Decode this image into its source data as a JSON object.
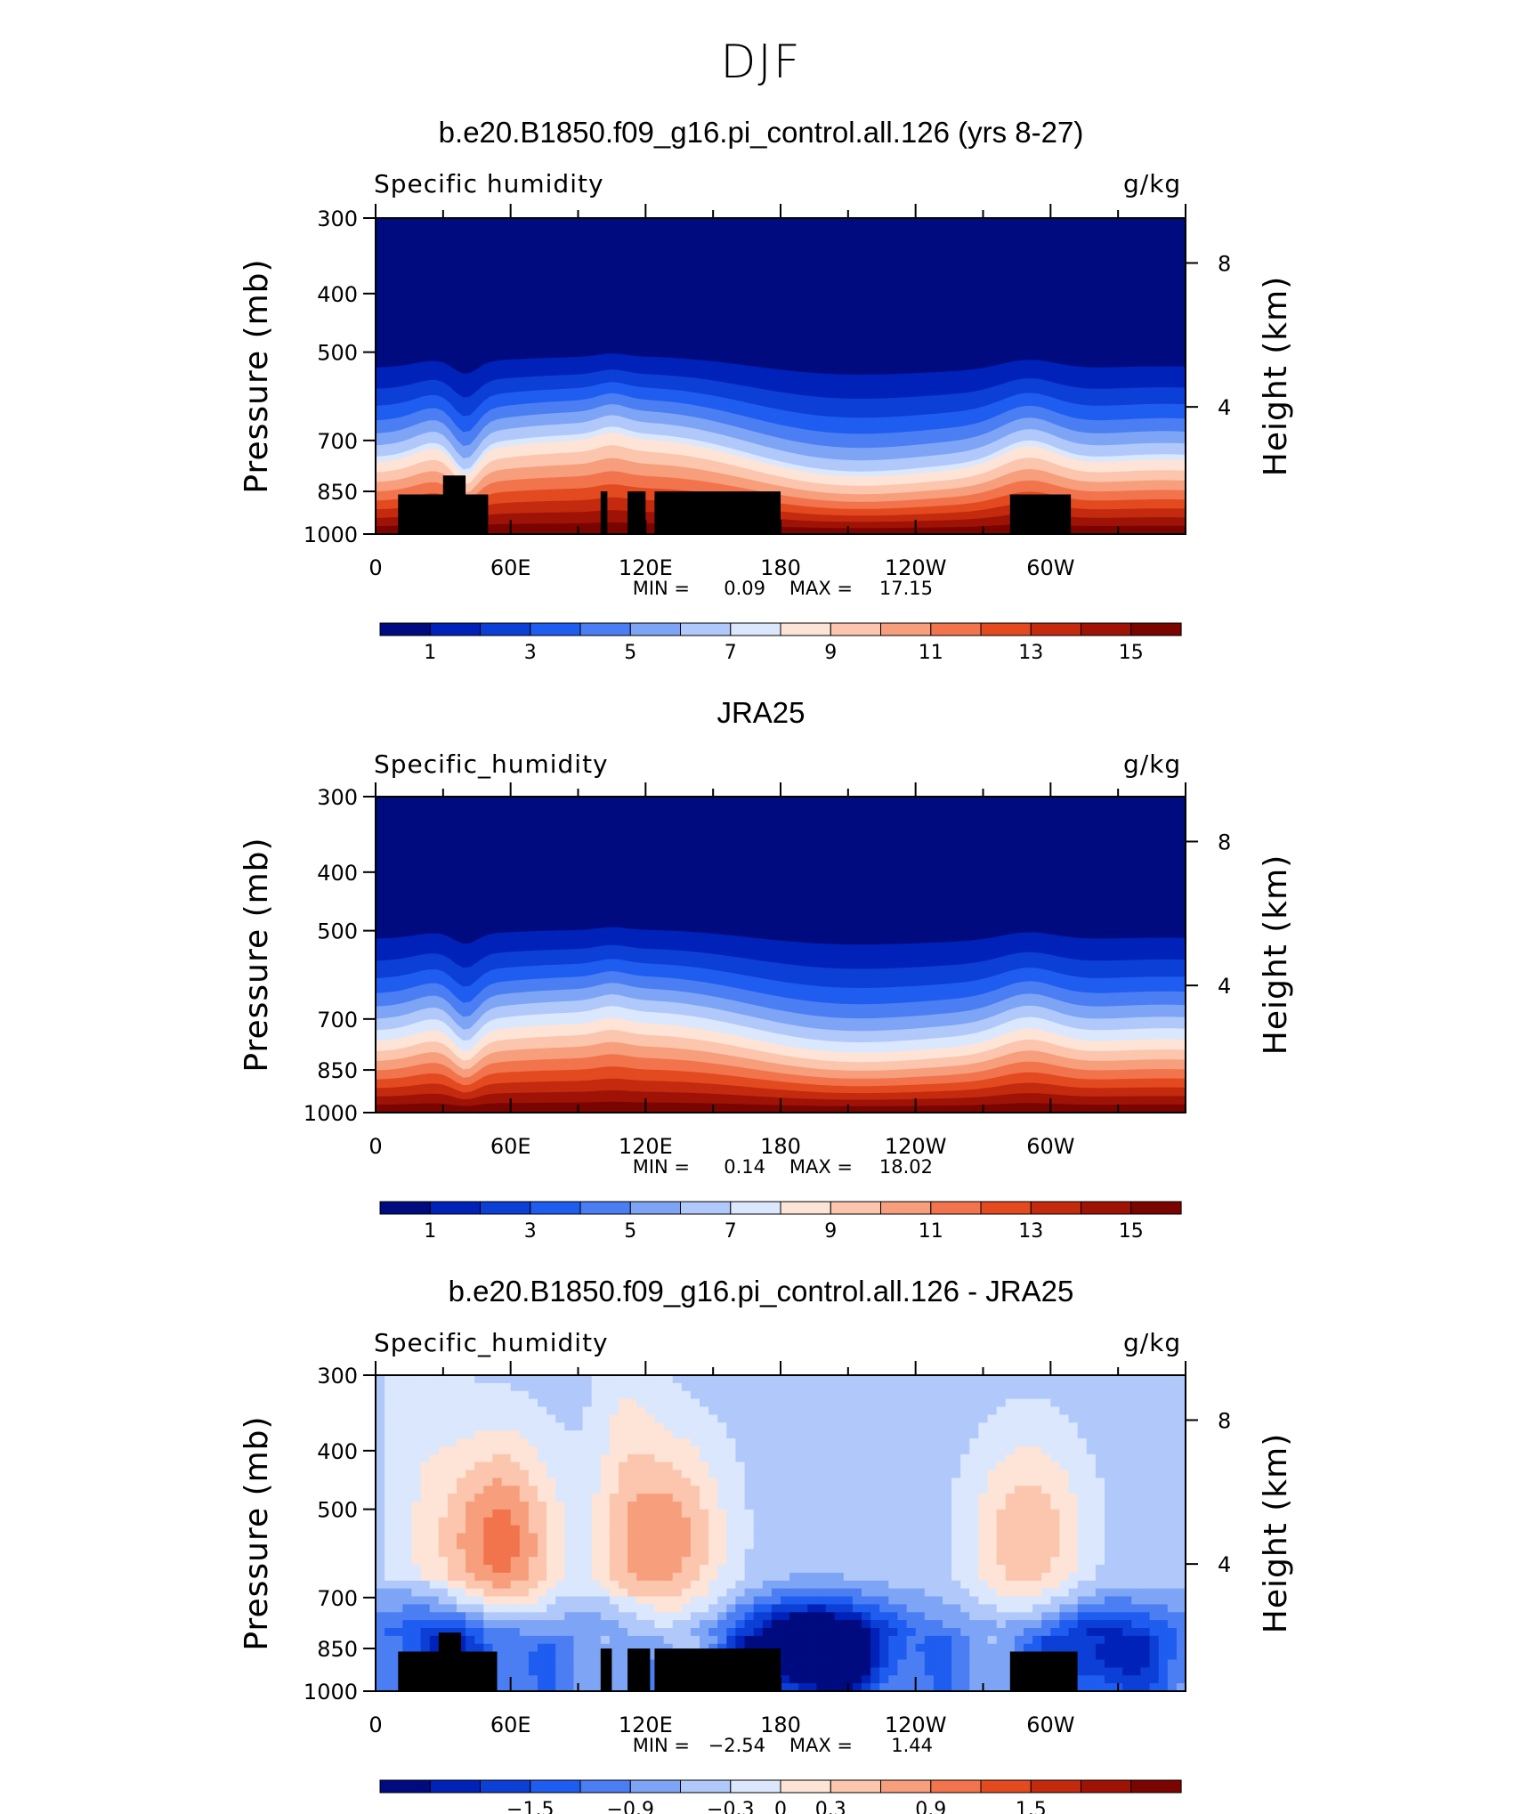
{
  "main_title": "DJF",
  "colors": {
    "absolute_scale": [
      "#000b80",
      "#0022b8",
      "#0b3fd6",
      "#1f5cf0",
      "#4a7ef2",
      "#7ea4f5",
      "#b1c9fa",
      "#dbe7fd",
      "#fde4d6",
      "#fbc6ad",
      "#f79e7c",
      "#f2744d",
      "#e34a20",
      "#c32a0e",
      "#9e1305",
      "#7a0400"
    ],
    "difference_scale": [
      "#000b80",
      "#0022b8",
      "#0b3fd6",
      "#1f5cf0",
      "#4a7ef2",
      "#7ea4f5",
      "#b1c9fa",
      "#dbe7fd",
      "#fde4d6",
      "#fbc6ad",
      "#f79e7c",
      "#f2744d",
      "#e34a20",
      "#c32a0e",
      "#9e1305",
      "#7a0400"
    ],
    "topography": "#000000"
  },
  "chart_data": [
    {
      "type": "heatmap",
      "title": "b.e20.B1850.f09_g16.pi_control.all.126 (yrs 8-27)",
      "variable_label": "Specific humidity",
      "units": "g/kg",
      "ylabel": "Pressure (mb)",
      "y2label": "Height (km)",
      "ytick_labels": [
        "300",
        "400",
        "500",
        "700",
        "850",
        "1000"
      ],
      "y2tick_labels": [
        "8",
        "4"
      ],
      "xtick_labels": [
        "0",
        "60E",
        "120E",
        "180",
        "120W",
        "60W"
      ],
      "xlim_deg_east": [
        0,
        360
      ],
      "ylim_mb": [
        1000,
        300
      ],
      "stats": {
        "min_label": "MIN =",
        "min": "0.09",
        "max_label": "MAX =",
        "max": "17.15"
      },
      "colorbar_labels": [
        "1",
        "3",
        "5",
        "7",
        "9",
        "11",
        "13",
        "15"
      ],
      "colorbar_levels": [
        1,
        2,
        3,
        4,
        5,
        6,
        7,
        8,
        9,
        10,
        11,
        12,
        13,
        14,
        15
      ],
      "layer_midpoints": [
        [
          0,
          430
        ],
        [
          20,
          520
        ],
        [
          30,
          400
        ],
        [
          40,
          560
        ],
        [
          60,
          410
        ],
        [
          100,
          420
        ],
        [
          120,
          400
        ],
        [
          140,
          370
        ],
        [
          170,
          450
        ],
        [
          200,
          530
        ],
        [
          230,
          560
        ],
        [
          250,
          500
        ],
        [
          280,
          410
        ],
        [
          300,
          420
        ],
        [
          330,
          440
        ],
        [
          360,
          500
        ]
      ],
      "topography": [
        [
          10,
          860,
          40
        ],
        [
          30,
          800,
          10
        ],
        [
          100,
          850,
          3
        ],
        [
          112,
          850,
          8
        ],
        [
          124,
          850,
          56
        ],
        [
          282,
          860,
          27
        ]
      ]
    },
    {
      "type": "heatmap",
      "title": "JRA25",
      "variable_label": "Specific_humidity",
      "units": "g/kg",
      "ylabel": "Pressure (mb)",
      "y2label": "Height (km)",
      "ytick_labels": [
        "300",
        "400",
        "500",
        "700",
        "850",
        "1000"
      ],
      "y2tick_labels": [
        "8",
        "4"
      ],
      "xtick_labels": [
        "0",
        "60E",
        "120E",
        "180",
        "120W",
        "60W"
      ],
      "xlim_deg_east": [
        0,
        360
      ],
      "ylim_mb": [
        1000,
        300
      ],
      "stats": {
        "min_label": "MIN =",
        "min": "0.14",
        "max_label": "MAX =",
        "max": "18.02"
      },
      "colorbar_labels": [
        "1",
        "3",
        "5",
        "7",
        "9",
        "11",
        "13",
        "15"
      ],
      "colorbar_levels": [
        1,
        2,
        3,
        4,
        5,
        6,
        7,
        8,
        9,
        10,
        11,
        12,
        13,
        14,
        15
      ],
      "topography": []
    },
    {
      "type": "heatmap",
      "title": "b.e20.B1850.f09_g16.pi_control.all.126 - JRA25",
      "variable_label": "Specific_humidity",
      "units": "g/kg",
      "ylabel": "Pressure (mb)",
      "y2label": "Height (km)",
      "ytick_labels": [
        "300",
        "400",
        "500",
        "700",
        "850",
        "1000"
      ],
      "y2tick_labels": [
        "8",
        "4"
      ],
      "xtick_labels": [
        "0",
        "60E",
        "120E",
        "180",
        "120W",
        "60W"
      ],
      "xlim_deg_east": [
        0,
        360
      ],
      "ylim_mb": [
        1000,
        300
      ],
      "stats": {
        "min_label": "MIN =",
        "min": "−2.54",
        "max_label": "MAX =",
        "max": "1.44"
      },
      "colorbar_labels": [
        "−1.5",
        "−0.9",
        "−0.3",
        "0",
        "0.3",
        "0.9",
        "1.5"
      ],
      "colorbar_levels": [
        -2.1,
        -1.8,
        -1.5,
        -1.2,
        -0.9,
        -0.6,
        -0.3,
        0,
        0.3,
        0.6,
        0.9,
        1.2,
        1.5,
        1.8,
        2.1
      ],
      "anomalies": [
        {
          "lon": 55,
          "p": 570,
          "value": 1.5,
          "kind": "moist"
        },
        {
          "lon": 130,
          "p": 560,
          "value": 1.2,
          "kind": "moist"
        },
        {
          "lon": 290,
          "p": 560,
          "value": 1.0,
          "kind": "moist"
        },
        {
          "lon": 195,
          "p": 850,
          "value": -2.5,
          "kind": "dry"
        },
        {
          "lon": 40,
          "p": 850,
          "value": -1.2,
          "kind": "dry"
        },
        {
          "lon": 320,
          "p": 850,
          "value": -1.2,
          "kind": "dry"
        }
      ],
      "topography": [
        [
          10,
          860,
          44
        ],
        [
          28,
          800,
          10
        ],
        [
          100,
          850,
          5
        ],
        [
          112,
          850,
          10
        ],
        [
          124,
          850,
          56
        ],
        [
          282,
          860,
          30
        ]
      ]
    }
  ]
}
